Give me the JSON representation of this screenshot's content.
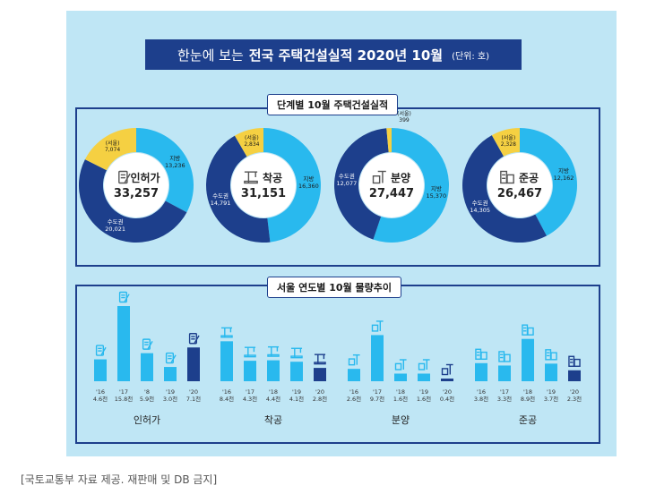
{
  "title": {
    "prefix": "한눈에 보는",
    "main": "전국 주택건설실적 2020년 10월",
    "unit": "(단위: 호)"
  },
  "top_section_label": "단계별 10월 주택건설실적",
  "bottom_section_label": "서울 연도별 10월 물량추이",
  "footer": "[국토교통부 자료 제공. 재판매 및 DB 금지]",
  "colors": {
    "seoul": "#f5d042",
    "capital": "#1d3f8c",
    "local": "#29b9ee",
    "dark_bar": "#1d3f8c",
    "bg": "#bfe6f5"
  },
  "chart_data": [
    {
      "type": "pie",
      "title": "단계별 10월 주택건설실적",
      "slice_labels": [
        "(서울)",
        "수도권",
        "지방"
      ],
      "donuts": [
        {
          "name": "인허가",
          "icon": "document-pen-icon",
          "total": "33,257",
          "seoul": {
            "label": "(서울)",
            "text": "7,074",
            "value": 7074
          },
          "capital": {
            "label": "수도권",
            "text": "20,021",
            "value": 20021
          },
          "local": {
            "label": "지방",
            "text": "13,236",
            "value": 13236
          }
        },
        {
          "name": "착공",
          "icon": "crane-icon",
          "total": "31,151",
          "seoul": {
            "label": "(서울)",
            "text": "2,834",
            "value": 2834
          },
          "capital": {
            "label": "수도권",
            "text": "14,791",
            "value": 14791
          },
          "local": {
            "label": "지방",
            "text": "16,360",
            "value": 16360
          }
        },
        {
          "name": "분양",
          "icon": "building-crane-icon",
          "total": "27,447",
          "seoul": {
            "label": "(서울)",
            "text": "399",
            "value": 399
          },
          "capital": {
            "label": "수도권",
            "text": "12,077",
            "value": 12077
          },
          "local": {
            "label": "지방",
            "text": "15,370",
            "value": 15370
          }
        },
        {
          "name": "준공",
          "icon": "building-icon",
          "total": "26,467",
          "seoul": {
            "label": "(서울)",
            "text": "2,328",
            "value": 2328
          },
          "capital": {
            "label": "수도권",
            "text": "14,305",
            "value": 14305
          },
          "local": {
            "label": "지방",
            "text": "12,162",
            "value": 12162
          }
        }
      ]
    },
    {
      "type": "bar",
      "title": "서울 연도별 10월 물량추이",
      "unit": "천",
      "groups": [
        {
          "name": "인허가",
          "icon": "document-pen-icon",
          "categories": [
            "'16",
            "'17",
            "'8",
            "'19",
            "'20"
          ],
          "labels": [
            "4.6천",
            "15.8천",
            "5.9천",
            "3.0천",
            "7.1천"
          ],
          "values": [
            4.6,
            15.8,
            5.9,
            3.0,
            7.1
          ]
        },
        {
          "name": "착공",
          "icon": "crane-icon",
          "categories": [
            "'16",
            "'17",
            "'18",
            "'19",
            "'20"
          ],
          "labels": [
            "8.4천",
            "4.3천",
            "4.4천",
            "4.1천",
            "2.8천"
          ],
          "values": [
            8.4,
            4.3,
            4.4,
            4.1,
            2.8
          ]
        },
        {
          "name": "분양",
          "icon": "building-crane-icon",
          "categories": [
            "'16",
            "'17",
            "'18",
            "'19",
            "'20"
          ],
          "labels": [
            "2.6천",
            "9.7천",
            "1.6천",
            "1.6천",
            "0.4천"
          ],
          "values": [
            2.6,
            9.7,
            1.6,
            1.6,
            0.4
          ]
        },
        {
          "name": "준공",
          "icon": "building-icon",
          "categories": [
            "'16",
            "'17",
            "'18",
            "'19",
            "'20"
          ],
          "labels": [
            "3.8천",
            "3.3천",
            "8.9천",
            "3.7천",
            "2.3천"
          ],
          "values": [
            3.8,
            3.3,
            8.9,
            3.7,
            2.3
          ]
        }
      ]
    }
  ]
}
